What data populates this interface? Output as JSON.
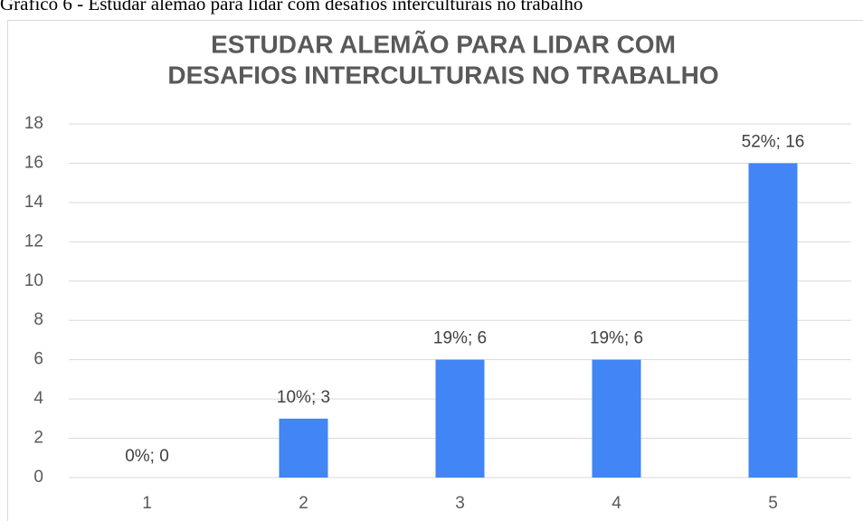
{
  "caption": "Gráfico 6 - Estudar alemão para lidar com desafios interculturais no trabalho",
  "chart_data": {
    "type": "bar",
    "title": [
      "ESTUDAR ALEMÃO PARA LIDAR COM",
      "DESAFIOS INTERCULTURAIS NO TRABALHO"
    ],
    "categories": [
      "1",
      "2",
      "3",
      "4",
      "5"
    ],
    "values": [
      0,
      3,
      6,
      6,
      16
    ],
    "value_labels": [
      "0%; 0",
      "10%; 3",
      "19%; 6",
      "19%; 6",
      "52%; 16"
    ],
    "color": "#4285f4",
    "ylim": [
      0,
      18
    ],
    "yticks": [
      0,
      2,
      4,
      6,
      8,
      10,
      12,
      14,
      16,
      18
    ],
    "grid": true
  }
}
